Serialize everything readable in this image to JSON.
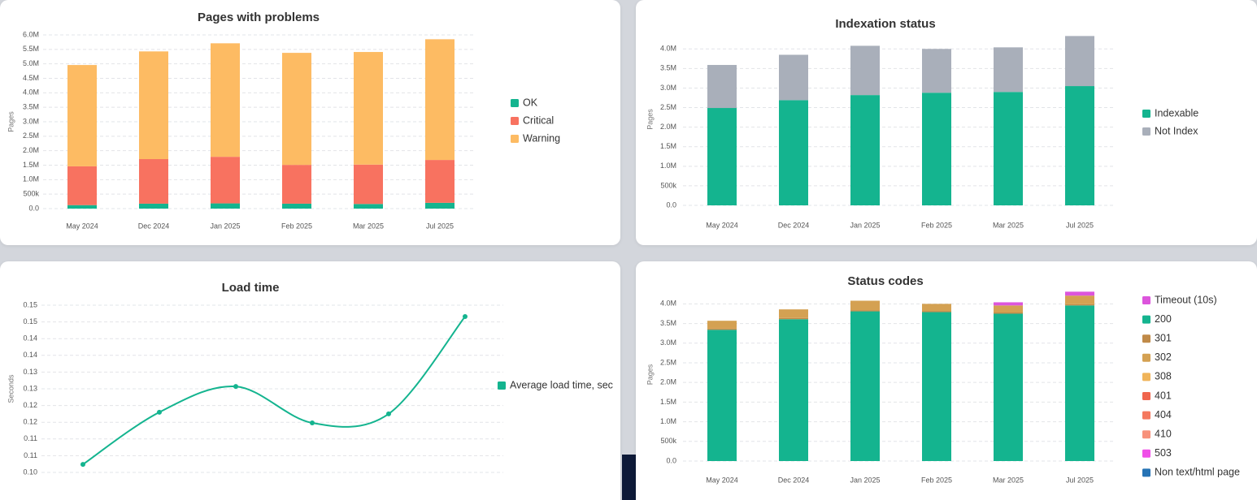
{
  "chart_data": [
    {
      "type": "bar",
      "stacked": true,
      "title": "Pages with problems",
      "y_label": "Pages",
      "categories": [
        "May 2024",
        "Dec 2024",
        "Jan 2025",
        "Feb 2025",
        "Mar 2025",
        "Jul 2025"
      ],
      "series": [
        {
          "name": "OK",
          "color": "#14b48f",
          "values": [
            120000,
            170000,
            180000,
            170000,
            160000,
            200000
          ]
        },
        {
          "name": "Critical",
          "color": "#f87260",
          "values": [
            1340000,
            1540000,
            1610000,
            1340000,
            1360000,
            1480000
          ]
        },
        {
          "name": "Warning",
          "color": "#fdbb63",
          "values": [
            3500000,
            3720000,
            3920000,
            3870000,
            3890000,
            4170000
          ]
        }
      ],
      "ylim": [
        0,
        6000000
      ],
      "yticks": [
        {
          "value": 0,
          "label": "0.0"
        },
        {
          "value": 500000,
          "label": "500k"
        },
        {
          "value": 1000000,
          "label": "1.0M"
        },
        {
          "value": 1500000,
          "label": "1.5M"
        },
        {
          "value": 2000000,
          "label": "2.0M"
        },
        {
          "value": 2500000,
          "label": "2.5M"
        },
        {
          "value": 3000000,
          "label": "3.0M"
        },
        {
          "value": 3500000,
          "label": "3.5M"
        },
        {
          "value": 4000000,
          "label": "4.0M"
        },
        {
          "value": 4500000,
          "label": "4.5M"
        },
        {
          "value": 5000000,
          "label": "5.0M"
        },
        {
          "value": 5500000,
          "label": "5.5M"
        },
        {
          "value": 6000000,
          "label": "6.0M"
        }
      ],
      "grid": true
    },
    {
      "type": "bar",
      "stacked": true,
      "title": "Indexation status",
      "y_label": "Pages",
      "categories": [
        "May 2024",
        "Dec 2024",
        "Jan 2025",
        "Feb 2025",
        "Mar 2025",
        "Jul 2025"
      ],
      "series": [
        {
          "name": "Indexable",
          "color": "#14b48f",
          "values": [
            2490000,
            2690000,
            2820000,
            2880000,
            2900000,
            3050000
          ]
        },
        {
          "name": "Not Index",
          "color": "#a9afba",
          "values": [
            1100000,
            1160000,
            1260000,
            1120000,
            1140000,
            1280000
          ]
        }
      ],
      "ylim": [
        0,
        4400000
      ],
      "yticks": [
        {
          "value": 0,
          "label": "0.0"
        },
        {
          "value": 500000,
          "label": "500k"
        },
        {
          "value": 1000000,
          "label": "1.0M"
        },
        {
          "value": 1500000,
          "label": "1.5M"
        },
        {
          "value": 2000000,
          "label": "2.0M"
        },
        {
          "value": 2500000,
          "label": "2.5M"
        },
        {
          "value": 3000000,
          "label": "3.0M"
        },
        {
          "value": 3500000,
          "label": "3.5M"
        },
        {
          "value": 4000000,
          "label": "4.0M"
        }
      ],
      "grid": true
    },
    {
      "type": "line",
      "title": "Load time",
      "y_label": "Seconds",
      "categories": [
        null,
        null,
        null,
        null,
        null,
        null
      ],
      "series": [
        {
          "name": "Average load time, sec",
          "color": "#14b48f",
          "values": [
            0.1024,
            0.118,
            0.1257,
            0.1148,
            0.1175,
            0.1466
          ]
        }
      ],
      "ylim": [
        0.1,
        0.15
      ],
      "yticks": [
        {
          "value": 0.1,
          "label": "0.10"
        },
        {
          "value": 0.105,
          "label": "0.11"
        },
        {
          "value": 0.11,
          "label": "0.11"
        },
        {
          "value": 0.115,
          "label": "0.12"
        },
        {
          "value": 0.12,
          "label": "0.12"
        },
        {
          "value": 0.125,
          "label": "0.13"
        },
        {
          "value": 0.13,
          "label": "0.13"
        },
        {
          "value": 0.135,
          "label": "0.14"
        },
        {
          "value": 0.14,
          "label": "0.14"
        },
        {
          "value": 0.145,
          "label": "0.15"
        },
        {
          "value": 0.15,
          "label": "0.15"
        }
      ],
      "grid": true
    },
    {
      "type": "bar",
      "stacked": true,
      "title": "Status codes",
      "y_label": "Pages",
      "categories": [
        "May 2024",
        "Dec 2024",
        "Jan 2025",
        "Feb 2025",
        "Mar 2025",
        "Jul 2025"
      ],
      "series": [
        {
          "name": "Timeout (10s)",
          "color": "#dc55dc",
          "values": [
            0,
            0,
            0,
            0,
            80000,
            100000
          ]
        },
        {
          "name": "200",
          "color": "#14b48f",
          "values": [
            3340000,
            3610000,
            3810000,
            3790000,
            3750000,
            3960000
          ]
        },
        {
          "name": "301",
          "color": "#c08a48",
          "values": [
            30000,
            30000,
            30000,
            30000,
            30000,
            30000
          ]
        },
        {
          "name": "302",
          "color": "#d4a152",
          "values": [
            200000,
            220000,
            240000,
            180000,
            180000,
            220000
          ]
        },
        {
          "name": "308",
          "color": "#f0b45a",
          "values": [
            0,
            0,
            0,
            0,
            0,
            0
          ]
        },
        {
          "name": "401",
          "color": "#f0654d",
          "values": [
            0,
            0,
            0,
            0,
            0,
            0
          ]
        },
        {
          "name": "404",
          "color": "#f4785e",
          "values": [
            0,
            0,
            0,
            0,
            0,
            0
          ]
        },
        {
          "name": "410",
          "color": "#f7917b",
          "values": [
            0,
            0,
            0,
            0,
            0,
            0
          ]
        },
        {
          "name": "503",
          "color": "#f04fe8",
          "values": [
            0,
            0,
            0,
            0,
            0,
            0
          ]
        },
        {
          "name": "Non text/html page",
          "color": "#2673b5",
          "values": [
            0,
            0,
            0,
            0,
            0,
            0
          ]
        }
      ],
      "ylim": [
        0,
        4400000
      ],
      "yticks": [
        {
          "value": 0,
          "label": "0.0"
        },
        {
          "value": 500000,
          "label": "500k"
        },
        {
          "value": 1000000,
          "label": "1.0M"
        },
        {
          "value": 1500000,
          "label": "1.5M"
        },
        {
          "value": 2000000,
          "label": "2.0M"
        },
        {
          "value": 2500000,
          "label": "2.5M"
        },
        {
          "value": 3000000,
          "label": "3.0M"
        },
        {
          "value": 3500000,
          "label": "3.5M"
        },
        {
          "value": 4000000,
          "label": "4.0M"
        }
      ],
      "grid": true
    }
  ]
}
